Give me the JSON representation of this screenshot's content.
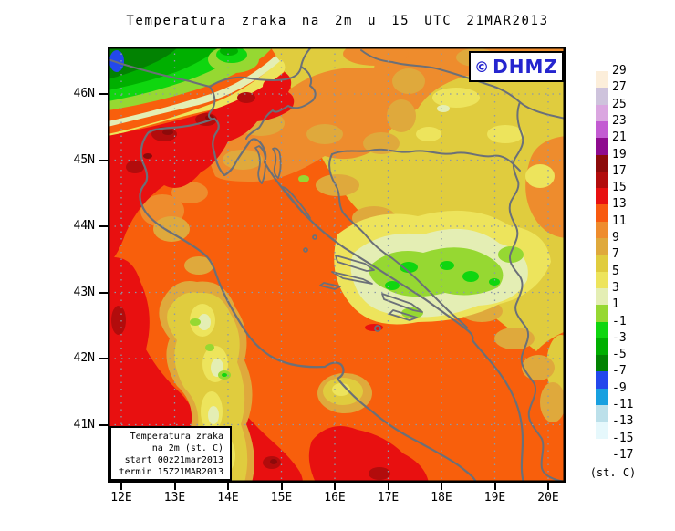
{
  "title": "Temperatura zraka na 2m u 15 UTC 21MAR2013",
  "watermark": {
    "symbol": "©",
    "name": "DHMZ",
    "color": "#2525cf"
  },
  "info_box": {
    "lines": [
      "Temperatura zraka",
      "na 2m (st. C)",
      "start 00z21mar2013",
      "termin 15Z21MAR2013"
    ]
  },
  "axes": {
    "lat": {
      "labels": [
        "46N",
        "45N",
        "44N",
        "43N",
        "42N",
        "41N"
      ]
    },
    "lon": {
      "labels": [
        "12E",
        "13E",
        "14E",
        "15E",
        "16E",
        "17E",
        "18E",
        "19E",
        "20E"
      ]
    }
  },
  "colorbar": {
    "unit": "(st. C)",
    "tick_labels": [
      "29",
      "27",
      "25",
      "23",
      "21",
      "19",
      "17",
      "15",
      "13",
      "11",
      "9",
      "7",
      "5",
      "3",
      "1",
      "-1",
      "-3",
      "-5",
      "-7",
      "-9",
      "-11",
      "-13",
      "-15",
      "-17"
    ],
    "band_colors": [
      "#FCEEDA",
      "#CEC3DC",
      "#DAA6E0",
      "#C35BD2",
      "#8E0A8E",
      "#8C0A0A",
      "#B20C0C",
      "#E81010",
      "#F85A0F",
      "#EE8C2D",
      "#DFA93C",
      "#E0CC3E",
      "#EDE45C",
      "#E4EEB4",
      "#96D832",
      "#0FD60F",
      "#00AF00",
      "#028202",
      "#2348EC",
      "#18A0E0",
      "#BCE0EA",
      "#E6F8FC",
      "#FFFFFF"
    ]
  },
  "map_colors": {
    "sea": "#F85F0C",
    "coastline": "#6B7078",
    "graticule": "#8C99A8"
  }
}
